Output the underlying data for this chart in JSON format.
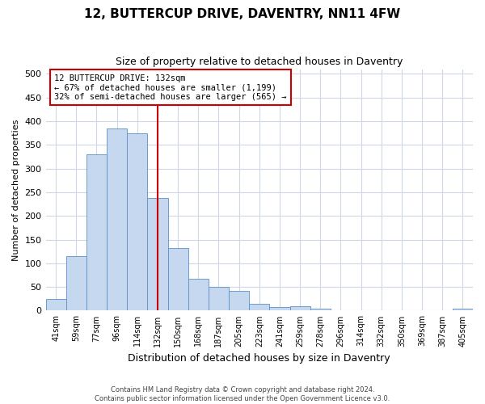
{
  "title": "12, BUTTERCUP DRIVE, DAVENTRY, NN11 4FW",
  "subtitle": "Size of property relative to detached houses in Daventry",
  "xlabel": "Distribution of detached houses by size in Daventry",
  "ylabel": "Number of detached properties",
  "bar_labels": [
    "41sqm",
    "59sqm",
    "77sqm",
    "96sqm",
    "114sqm",
    "132sqm",
    "150sqm",
    "168sqm",
    "187sqm",
    "205sqm",
    "223sqm",
    "241sqm",
    "259sqm",
    "278sqm",
    "296sqm",
    "314sqm",
    "332sqm",
    "350sqm",
    "369sqm",
    "387sqm",
    "405sqm"
  ],
  "bar_values": [
    25,
    115,
    330,
    385,
    375,
    238,
    132,
    68,
    50,
    42,
    15,
    7,
    10,
    4,
    1,
    1,
    1,
    0,
    1,
    0,
    5
  ],
  "bar_color": "#c5d8f0",
  "bar_edge_color": "#5b8fc9",
  "vline_x": 5,
  "vline_color": "#cc0000",
  "ylim": [
    0,
    510
  ],
  "yticks": [
    0,
    50,
    100,
    150,
    200,
    250,
    300,
    350,
    400,
    450,
    500
  ],
  "annotation_title": "12 BUTTERCUP DRIVE: 132sqm",
  "annotation_line1": "← 67% of detached houses are smaller (1,199)",
  "annotation_line2": "32% of semi-detached houses are larger (565) →",
  "annotation_box_color": "#ffffff",
  "annotation_box_edge": "#cc0000",
  "footer1": "Contains HM Land Registry data © Crown copyright and database right 2024.",
  "footer2": "Contains public sector information licensed under the Open Government Licence v3.0.",
  "bg_color": "#ffffff",
  "plot_bg_color": "#ffffff",
  "grid_color": "#d0d8e8"
}
